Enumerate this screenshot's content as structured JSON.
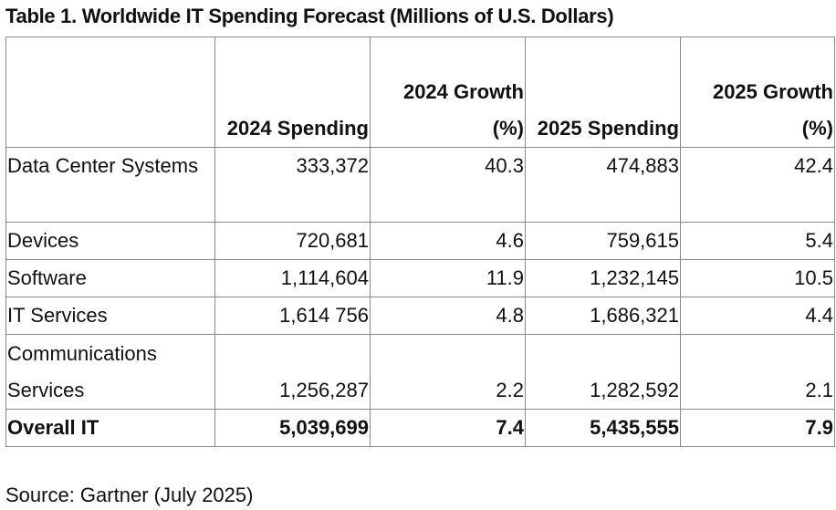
{
  "title": "Table 1. Worldwide IT Spending Forecast (Millions of U.S. Dollars)",
  "columns": [
    "",
    "2024 Spending",
    "2024 Growth (%)",
    "2025 Spending",
    "2025 Growth (%)"
  ],
  "rows": [
    {
      "label": "Data Center Systems",
      "values": [
        "333,372",
        "40.3",
        "474,883",
        "42.4"
      ]
    },
    {
      "label": "Devices",
      "values": [
        "720,681",
        "4.6",
        "759,615",
        "5.4"
      ]
    },
    {
      "label": "Software",
      "values": [
        "1,114,604",
        "11.9",
        "1,232,145",
        "10.5"
      ]
    },
    {
      "label": "IT Services",
      "values": [
        "1,614 756",
        "4.8",
        "1,686,321",
        "4.4"
      ]
    },
    {
      "label": "Communications Services",
      "values": [
        "1,256,287",
        "2.2",
        "1,282,592",
        "2.1"
      ]
    },
    {
      "label": "Overall IT",
      "values": [
        "5,039,699",
        "7.4",
        "5,435,555",
        "7.9"
      ]
    }
  ],
  "source": "Source: Gartner (July 2025)"
}
